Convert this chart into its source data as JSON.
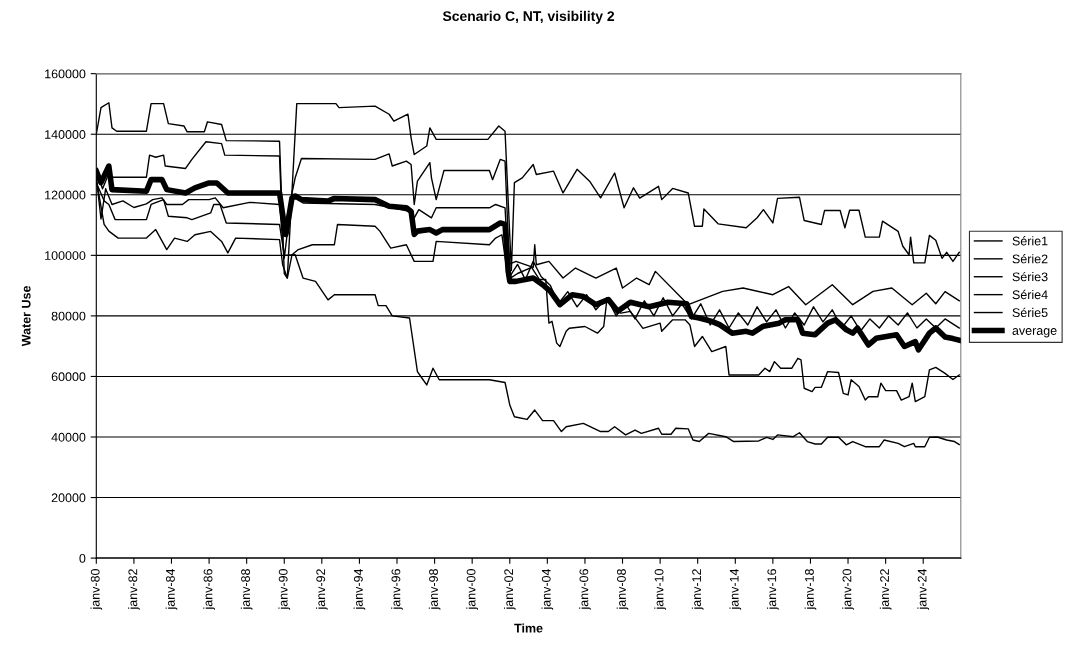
{
  "chart_data": {
    "type": "line",
    "title": "Scenario C, NT, visibility 2",
    "xlabel": "Time",
    "ylabel": "Water Use",
    "xlim": [
      "1980-01",
      "2026-01"
    ],
    "ylim": [
      0,
      160000
    ],
    "yticks": [
      0,
      20000,
      40000,
      60000,
      80000,
      100000,
      120000,
      140000,
      160000
    ],
    "xticks": [
      {
        "value": "1980-01",
        "label": "janv-80"
      },
      {
        "value": "1982-01",
        "label": "janv-82"
      },
      {
        "value": "1984-01",
        "label": "janv-84"
      },
      {
        "value": "1986-01",
        "label": "janv-86"
      },
      {
        "value": "1988-01",
        "label": "janv-88"
      },
      {
        "value": "1990-01",
        "label": "janv-90"
      },
      {
        "value": "1992-01",
        "label": "janv-92"
      },
      {
        "value": "1994-01",
        "label": "janv-94"
      },
      {
        "value": "1996-01",
        "label": "janv-96"
      },
      {
        "value": "1998-01",
        "label": "janv-98"
      },
      {
        "value": "2000-01",
        "label": "janv-00"
      },
      {
        "value": "2002-01",
        "label": "janv-02"
      },
      {
        "value": "2004-01",
        "label": "janv-04"
      },
      {
        "value": "2006-01",
        "label": "janv-06"
      },
      {
        "value": "2008-01",
        "label": "janv-08"
      },
      {
        "value": "2010-01",
        "label": "janv-10"
      },
      {
        "value": "2012-01",
        "label": "janv-12"
      },
      {
        "value": "2014-01",
        "label": "janv-14"
      },
      {
        "value": "2016-01",
        "label": "janv-16"
      },
      {
        "value": "2018-01",
        "label": "janv-18"
      },
      {
        "value": "2020-01",
        "label": "janv-20"
      },
      {
        "value": "2022-01",
        "label": "janv-22"
      },
      {
        "value": "2024-01",
        "label": "janv-24"
      }
    ],
    "grid": "y",
    "legend": "right",
    "marker": "none",
    "line_style": "solid",
    "series": [
      {
        "name": "Série1",
        "color": "#000000",
        "x": [
          "1980-01",
          "1980-04",
          "1980-09",
          "1980-11",
          "1981-02",
          "1982-09",
          "1982-12",
          "1983-08",
          "1983-11",
          "1984-09",
          "1984-11",
          "1985-10",
          "1985-12",
          "1986-09",
          "1986-12",
          "1989-10",
          "1990-01",
          "1990-03",
          "1990-09",
          "1992-10",
          "1992-12",
          "1994-11",
          "1995-08",
          "1995-11",
          "1996-08",
          "1996-10",
          "1996-12",
          "1997-08",
          "1997-10",
          "1998-02",
          "2000-11",
          "2001-06",
          "2001-10",
          "2001-12",
          "2002-02",
          "2002-04",
          "2002-09",
          "2003-04",
          "2003-06",
          "2004-05",
          "2004-11",
          "2005-08",
          "2006-04",
          "2006-11",
          "2007-08",
          "2008-02",
          "2008-08",
          "2008-12",
          "2009-12",
          "2010-02",
          "2010-09",
          "2011-07",
          "2011-11",
          "2012-04",
          "2012-05",
          "2013-02",
          "2014-08",
          "2015-03",
          "2015-07",
          "2016-01",
          "2016-04",
          "2017-06",
          "2017-09",
          "2018-08",
          "2018-10",
          "2019-08",
          "2019-11",
          "2020-02",
          "2020-08",
          "2020-12",
          "2021-09",
          "2021-11",
          "2022-09",
          "2022-12",
          "2023-04",
          "2023-05",
          "2023-07",
          "2024-02",
          "2024-05",
          "2024-09",
          "2025-01",
          "2025-04",
          "2025-08",
          "2025-12"
        ],
        "values": [
          140000,
          148800,
          150400,
          142100,
          141000,
          141000,
          150100,
          150100,
          143500,
          142700,
          140800,
          140800,
          144100,
          143200,
          137900,
          137700,
          94000,
          92500,
          150100,
          150100,
          148800,
          149300,
          146600,
          144300,
          146600,
          138800,
          133300,
          136100,
          142100,
          138300,
          138300,
          142700,
          141000,
          118000,
          95000,
          124000,
          125600,
          130000,
          126700,
          127800,
          120600,
          128400,
          124500,
          119000,
          127200,
          115700,
          122300,
          118900,
          122800,
          118400,
          122100,
          120600,
          109600,
          109600,
          115300,
          110400,
          109100,
          112400,
          115100,
          110700,
          118800,
          119200,
          111500,
          110200,
          114800,
          114800,
          109100,
          114900,
          114900,
          106000,
          106000,
          111300,
          107900,
          103000,
          100200,
          106000,
          97500,
          97500,
          106600,
          105000,
          99000,
          101000,
          98000,
          101000
        ]
      },
      {
        "name": "Série2",
        "color": "#000000",
        "x": [
          "1980-01",
          "1980-05",
          "1980-09",
          "1980-11",
          "1982-09",
          "1982-11",
          "1983-03",
          "1983-08",
          "1983-09",
          "1984-10",
          "1985-02",
          "1985-11",
          "1986-09",
          "1986-11",
          "1989-10",
          "1989-12",
          "1990-08",
          "1990-12",
          "1994-11",
          "1995-08",
          "1995-10",
          "1996-07",
          "1996-10",
          "1996-12",
          "1997-02",
          "1997-10",
          "1997-11",
          "1998-02",
          "1998-07",
          "2000-12",
          "2001-02",
          "2001-07",
          "2001-10",
          "2002-01",
          "2002-06",
          "2002-11",
          "2003-04",
          "2003-09",
          "2004-03",
          "2004-08",
          "2005-02",
          "2005-08",
          "2006-02",
          "2006-08",
          "2007-03",
          "2007-09",
          "2008-03",
          "2008-09",
          "2009-03",
          "2009-09",
          "2010-03",
          "2010-09",
          "2011-03",
          "2011-09",
          "2012-03",
          "2012-09",
          "2013-03",
          "2013-09",
          "2014-03",
          "2014-09",
          "2015-03",
          "2015-09",
          "2016-03",
          "2016-09",
          "2017-03",
          "2017-09",
          "2018-03",
          "2018-09",
          "2019-03",
          "2019-09",
          "2020-03",
          "2020-09",
          "2021-03",
          "2021-09",
          "2022-03",
          "2022-09",
          "2023-03",
          "2023-09",
          "2024-03",
          "2024-09",
          "2025-03",
          "2025-12"
        ],
        "values": [
          128000,
          122000,
          127000,
          125800,
          125800,
          133100,
          132400,
          133100,
          129500,
          128700,
          131700,
          137500,
          136900,
          133100,
          132800,
          105700,
          125600,
          132000,
          131700,
          133500,
          129500,
          131100,
          130000,
          116800,
          124500,
          130600,
          125600,
          118400,
          128000,
          128000,
          125000,
          131700,
          131100,
          93000,
          97000,
          92000,
          98000,
          93000,
          90000,
          84000,
          88000,
          83000,
          87000,
          82000,
          86000,
          80000,
          84000,
          79000,
          85000,
          80000,
          86000,
          80000,
          84000,
          79000,
          84000,
          77000,
          82000,
          76000,
          81000,
          77000,
          83000,
          78000,
          82000,
          76000,
          81000,
          77000,
          83000,
          78000,
          82000,
          76000,
          80000,
          75000,
          79000,
          76000,
          80000,
          77000,
          81000,
          76000,
          79000,
          76000,
          79000,
          76000
        ]
      },
      {
        "name": "Série3",
        "color": "#000000",
        "x": [
          "1980-01",
          "1980-04",
          "1980-07",
          "1980-11",
          "1981-06",
          "1982-01",
          "1982-09",
          "1983-01",
          "1983-07",
          "1983-10",
          "1984-08",
          "1984-12",
          "1986-01",
          "1986-05",
          "1986-10",
          "1988-03",
          "1989-10",
          "1990-01",
          "1990-06",
          "1991-01",
          "1994-11",
          "1996-09",
          "1996-12",
          "1997-03",
          "1997-11",
          "1998-02",
          "2000-12",
          "2001-04",
          "2001-10",
          "2001-12",
          "2002-05",
          "2003-04",
          "2003-05",
          "2003-06",
          "2004-02",
          "2004-11",
          "2005-07",
          "2006-08",
          "2007-09",
          "2008-01",
          "2008-10",
          "2009-06",
          "2009-10",
          "2011-07",
          "2013-05",
          "2014-06",
          "2016-01",
          "2016-11",
          "2017-10",
          "2019-03",
          "2020-04",
          "2021-05",
          "2022-05",
          "2023-06",
          "2024-03",
          "2024-09",
          "2025-03",
          "2025-12"
        ],
        "values": [
          126000,
          112000,
          122000,
          116800,
          118000,
          115800,
          117000,
          118400,
          119000,
          116800,
          116800,
          118400,
          118400,
          119000,
          115700,
          117500,
          116800,
          99100,
          120100,
          117300,
          116800,
          114500,
          112400,
          115100,
          112400,
          115700,
          115700,
          116800,
          115700,
          96900,
          98000,
          96000,
          103500,
          96900,
          98000,
          92500,
          95800,
          92500,
          95800,
          89200,
          92500,
          90300,
          94700,
          83700,
          88100,
          89200,
          87000,
          89700,
          83700,
          90300,
          83700,
          88100,
          89200,
          83700,
          87500,
          84000,
          88000,
          85000
        ]
      },
      {
        "name": "Série4",
        "color": "#000000",
        "x": [
          "1980-01",
          "1980-06",
          "1980-09",
          "1981-03",
          "1982-09",
          "1983-03",
          "1983-10",
          "1984-03",
          "1984-11",
          "1985-04",
          "1986-02",
          "1986-09",
          "1987-01",
          "1987-06",
          "1989-10",
          "1989-12",
          "1990-03",
          "1990-06",
          "1990-10",
          "1991-07",
          "1992-09",
          "1992-11",
          "1994-11",
          "1995-02",
          "1995-09",
          "1996-07",
          "1996-12",
          "1997-12",
          "1998-02",
          "2000-12",
          "2001-04",
          "2001-08",
          "2001-12",
          "2002-06",
          "2003-03",
          "2003-08",
          "2003-12",
          "2004-02",
          "2004-04",
          "2004-07",
          "2004-09",
          "2005-01",
          "2005-03",
          "2006-01",
          "2006-09",
          "2007-01",
          "2007-03",
          "2007-12",
          "2008-06",
          "2009-02",
          "2010-01",
          "2010-02",
          "2010-09",
          "2011-05",
          "2011-08",
          "2011-11",
          "2012-04",
          "2012-10",
          "2013-07",
          "2013-09",
          "2015-04",
          "2015-08",
          "2015-11",
          "2016-02",
          "2016-06",
          "2017-01",
          "2017-05",
          "2017-07",
          "2017-09",
          "2018-02",
          "2018-04",
          "2018-08",
          "2018-12",
          "2019-07",
          "2019-10",
          "2020-01",
          "2020-03",
          "2020-08",
          "2020-12",
          "2021-02",
          "2021-08",
          "2021-10",
          "2022-01",
          "2022-08",
          "2022-11",
          "2023-04",
          "2023-06",
          "2023-08",
          "2024-02",
          "2024-05",
          "2024-09",
          "2025-03",
          "2025-08",
          "2025-12"
        ],
        "values": [
          125000,
          110200,
          108000,
          105700,
          105700,
          108500,
          101900,
          105700,
          104600,
          106800,
          107900,
          104600,
          100800,
          105700,
          105200,
          96900,
          92500,
          100200,
          101900,
          103500,
          103500,
          110200,
          109600,
          108000,
          102400,
          103500,
          98000,
          98000,
          104600,
          103500,
          105700,
          106800,
          92000,
          94000,
          96000,
          92000,
          92000,
          77600,
          78200,
          71000,
          69900,
          74900,
          75900,
          76500,
          74300,
          76500,
          85000,
          80900,
          81500,
          75900,
          77600,
          74900,
          78700,
          78700,
          77100,
          69900,
          73200,
          68200,
          69900,
          60500,
          60500,
          62700,
          61600,
          64900,
          62700,
          62700,
          66000,
          65500,
          56100,
          55000,
          56400,
          56400,
          61600,
          61300,
          54400,
          53900,
          58900,
          56700,
          52200,
          53300,
          53300,
          57800,
          55300,
          55300,
          52200,
          53300,
          57800,
          51700,
          53300,
          62200,
          63000,
          61000,
          59000,
          60500
        ]
      },
      {
        "name": "Série5",
        "color": "#000000",
        "x": [
          "1980-01",
          "1980-06",
          "1980-09",
          "1981-01",
          "1982-09",
          "1982-12",
          "1983-08",
          "1983-11",
          "1984-11",
          "1985-02",
          "1986-02",
          "1986-04",
          "1986-08",
          "1986-12",
          "1989-10",
          "1990-01",
          "1990-08",
          "1991-01",
          "1991-09",
          "1992-05",
          "1992-09",
          "1994-11",
          "1995-01",
          "1995-06",
          "1995-10",
          "1996-09",
          "1997-02",
          "1997-05",
          "1997-08",
          "1997-12",
          "1998-04",
          "2000-12",
          "2001-10",
          "2002-01",
          "2002-04",
          "2002-12",
          "2003-05",
          "2003-10",
          "2004-05",
          "2004-10",
          "2005-01",
          "2005-12",
          "2006-11",
          "2007-04",
          "2007-08",
          "2008-03",
          "2008-09",
          "2009-01",
          "2009-12",
          "2010-02",
          "2010-08",
          "2010-11",
          "2011-07",
          "2011-10",
          "2012-02",
          "2012-08",
          "2013-07",
          "2013-12",
          "2015-04",
          "2015-09",
          "2016-01",
          "2016-04",
          "2017-02",
          "2017-06",
          "2017-11",
          "2018-04",
          "2018-08",
          "2018-12",
          "2019-07",
          "2019-12",
          "2020-04",
          "2020-12",
          "2021-09",
          "2021-12",
          "2022-09",
          "2023-01",
          "2023-07",
          "2023-08",
          "2024-02",
          "2024-05",
          "2024-10",
          "2025-04",
          "2025-09",
          "2025-12"
        ],
        "values": [
          124000,
          118000,
          116800,
          111800,
          111800,
          116800,
          118400,
          112900,
          112400,
          111800,
          114000,
          116800,
          116800,
          110700,
          110200,
          100000,
          100200,
          92500,
          91400,
          85300,
          87000,
          87000,
          83400,
          83400,
          80000,
          79300,
          61600,
          59400,
          57200,
          62700,
          58900,
          58900,
          58000,
          50600,
          46700,
          45800,
          48900,
          45400,
          45400,
          41800,
          43400,
          44500,
          41800,
          41800,
          43400,
          40700,
          42300,
          41200,
          42900,
          40900,
          40900,
          42900,
          42700,
          39000,
          38500,
          41200,
          40100,
          38500,
          38700,
          39900,
          39200,
          40700,
          40100,
          41400,
          38500,
          37700,
          37700,
          39900,
          39900,
          37400,
          38500,
          36800,
          36800,
          39000,
          37900,
          36800,
          37900,
          36800,
          36800,
          39900,
          40000,
          39000,
          38500,
          37500
        ]
      },
      {
        "name": "average",
        "color": "#000000",
        "x": [
          "1980-01",
          "1980-04",
          "1980-09",
          "1980-11",
          "1982-09",
          "1982-12",
          "1983-07",
          "1983-10",
          "1984-10",
          "1985-04",
          "1986-01",
          "1986-06",
          "1987-01",
          "1989-10",
          "1989-12",
          "1990-02",
          "1990-06",
          "1990-08",
          "1990-12",
          "1992-05",
          "1992-09",
          "1994-11",
          "1995-08",
          "1996-07",
          "1996-10",
          "1996-12",
          "1997-02",
          "1997-10",
          "1998-02",
          "1998-06",
          "2000-12",
          "2001-07",
          "2001-10",
          "2001-12",
          "2002-01",
          "2002-05",
          "2003-04",
          "2003-10",
          "2004-03",
          "2004-09",
          "2005-05",
          "2005-12",
          "2006-08",
          "2007-04",
          "2007-10",
          "2008-06",
          "2009-06",
          "2010-06",
          "2011-06",
          "2011-09",
          "2012-02",
          "2012-10",
          "2013-03",
          "2013-11",
          "2014-08",
          "2014-12",
          "2015-07",
          "2016-05",
          "2016-09",
          "2017-05",
          "2017-08",
          "2018-04",
          "2018-12",
          "2019-05",
          "2019-12",
          "2020-04",
          "2020-07",
          "2021-02",
          "2021-07",
          "2022-08",
          "2023-01",
          "2023-08",
          "2023-10",
          "2024-05",
          "2024-09",
          "2025-03",
          "2025-08",
          "2025-12"
        ],
        "values": [
          127800,
          124000,
          129500,
          121700,
          121200,
          125000,
          125000,
          121700,
          120600,
          122300,
          123900,
          123900,
          120600,
          120600,
          113500,
          106900,
          119000,
          119600,
          118400,
          117900,
          118800,
          118400,
          116200,
          115700,
          114500,
          106900,
          108000,
          108500,
          107400,
          108500,
          108500,
          110700,
          110200,
          94700,
          91400,
          91400,
          92500,
          90300,
          88100,
          83700,
          87000,
          86400,
          83700,
          85400,
          81500,
          84500,
          83000,
          84500,
          84000,
          79800,
          79300,
          78200,
          77100,
          74300,
          74900,
          74300,
          76600,
          77600,
          78700,
          78700,
          74300,
          73800,
          77600,
          78700,
          75400,
          74300,
          76000,
          70400,
          72600,
          73800,
          69900,
          71500,
          68800,
          74300,
          76000,
          73000,
          72500,
          72000
        ]
      }
    ]
  }
}
